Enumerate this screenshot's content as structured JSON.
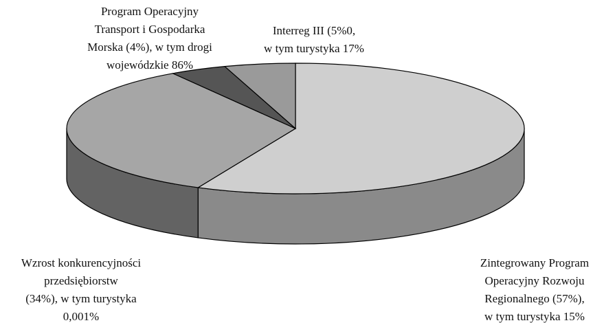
{
  "chart_data": {
    "type": "pie",
    "categories": [
      [
        "Zintegrowany Program",
        "Operacyjny Rozwoju",
        "Regionalnego (57%),",
        "w tym turystyka 15%"
      ],
      [
        "Wzrost konkurencyjności",
        "przedsiębiorstw",
        "(34%), w tym turystyka",
        "0,001%"
      ],
      [
        "Program Operacyjny",
        "Transport i Gospodarka",
        "Morska (4%), w tym drogi",
        "wojewódzkie 86%"
      ],
      [
        "Interreg III (5%0,",
        "w tym turystyka 17%"
      ]
    ],
    "values": [
      57,
      34,
      4,
      5
    ],
    "colors": [
      "#cfcfcf",
      "#a6a6a6",
      "#555555",
      "#9a9a9a"
    ],
    "side_colors": [
      "#8a8a8a",
      "#636363",
      "#3a3a3a",
      "#6a6a6a"
    ]
  }
}
